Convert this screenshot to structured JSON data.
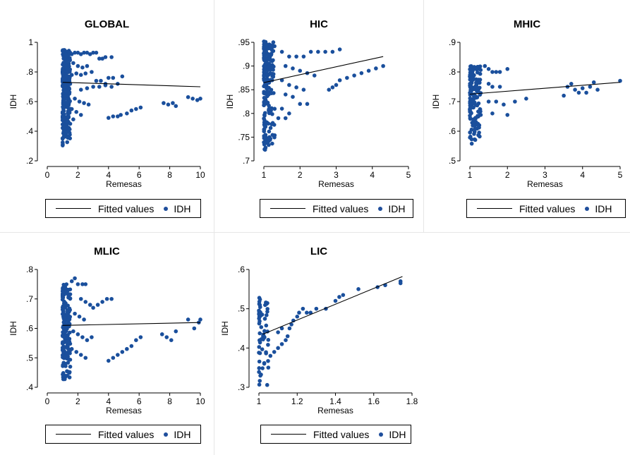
{
  "colors": {
    "points": "#1a4f9c",
    "fit": "#000000",
    "background": "#ffffff"
  },
  "legend": {
    "fit_label": "Fitted values",
    "points_label": "IDH"
  },
  "chart_data": [
    {
      "type": "scatter",
      "title": "GLOBAL",
      "xlabel": "Remesas",
      "ylabel": "IDH",
      "xlim": [
        0,
        10
      ],
      "ylim": [
        0.2,
        1.0
      ],
      "xticks": [
        0,
        2,
        4,
        6,
        8,
        10
      ],
      "xtick_labels": [
        "0",
        "2",
        "4",
        "6",
        "8",
        "10"
      ],
      "yticks": [
        0.2,
        0.4,
        0.6,
        0.8,
        1.0
      ],
      "ytick_labels": [
        ".2",
        ".4",
        ".6",
        ".8",
        "1"
      ],
      "fit": {
        "x": [
          1,
          10
        ],
        "y": [
          0.73,
          0.7
        ]
      },
      "cloud": {
        "xmin": 1.0,
        "xmax": 1.5,
        "ymin": 0.3,
        "ymax": 0.95,
        "count": 260,
        "seed": 11
      },
      "points": [
        [
          1.6,
          0.92
        ],
        [
          1.8,
          0.93
        ],
        [
          2.0,
          0.93
        ],
        [
          2.2,
          0.92
        ],
        [
          2.4,
          0.93
        ],
        [
          2.6,
          0.93
        ],
        [
          2.8,
          0.92
        ],
        [
          3.0,
          0.93
        ],
        [
          3.2,
          0.93
        ],
        [
          3.4,
          0.89
        ],
        [
          3.6,
          0.89
        ],
        [
          3.8,
          0.9
        ],
        [
          4.2,
          0.9
        ],
        [
          1.7,
          0.86
        ],
        [
          2.0,
          0.84
        ],
        [
          2.3,
          0.83
        ],
        [
          2.6,
          0.84
        ],
        [
          1.6,
          0.78
        ],
        [
          1.9,
          0.79
        ],
        [
          2.2,
          0.78
        ],
        [
          2.5,
          0.79
        ],
        [
          2.9,
          0.8
        ],
        [
          3.2,
          0.74
        ],
        [
          3.5,
          0.74
        ],
        [
          3.8,
          0.72
        ],
        [
          4.0,
          0.76
        ],
        [
          4.3,
          0.76
        ],
        [
          4.6,
          0.72
        ],
        [
          4.9,
          0.77
        ],
        [
          2.2,
          0.68
        ],
        [
          2.6,
          0.69
        ],
        [
          3.0,
          0.7
        ],
        [
          3.4,
          0.7
        ],
        [
          3.8,
          0.71
        ],
        [
          4.2,
          0.7
        ],
        [
          1.8,
          0.62
        ],
        [
          2.1,
          0.6
        ],
        [
          2.4,
          0.59
        ],
        [
          2.7,
          0.58
        ],
        [
          1.6,
          0.55
        ],
        [
          1.9,
          0.53
        ],
        [
          2.2,
          0.51
        ],
        [
          4.0,
          0.49
        ],
        [
          4.3,
          0.5
        ],
        [
          4.6,
          0.5
        ],
        [
          4.8,
          0.51
        ],
        [
          5.2,
          0.52
        ],
        [
          5.5,
          0.54
        ],
        [
          5.8,
          0.55
        ],
        [
          6.1,
          0.56
        ],
        [
          7.6,
          0.59
        ],
        [
          7.9,
          0.58
        ],
        [
          8.2,
          0.59
        ],
        [
          8.4,
          0.57
        ],
        [
          9.2,
          0.63
        ],
        [
          9.5,
          0.62
        ],
        [
          9.8,
          0.61
        ],
        [
          10.0,
          0.62
        ],
        [
          1.7,
          0.48
        ],
        [
          1.5,
          0.45
        ]
      ]
    },
    {
      "type": "scatter",
      "title": "HIC",
      "xlabel": "Remesas",
      "ylabel": "IDH",
      "xlim": [
        1,
        5
      ],
      "ylim": [
        0.7,
        0.95
      ],
      "xticks": [
        1,
        2,
        3,
        4,
        5
      ],
      "xtick_labels": [
        "1",
        "2",
        "3",
        "4",
        "5"
      ],
      "yticks": [
        0.7,
        0.75,
        0.8,
        0.85,
        0.9,
        0.95
      ],
      "ytick_labels": [
        ".7",
        ".75",
        ".8",
        ".85",
        ".9",
        ".95"
      ],
      "fit": {
        "x": [
          1,
          4.3
        ],
        "y": [
          0.865,
          0.92
        ]
      },
      "cloud": {
        "xmin": 1.0,
        "xmax": 1.3,
        "ymin": 0.715,
        "ymax": 0.952,
        "count": 200,
        "seed": 23
      },
      "points": [
        [
          1.5,
          0.93
        ],
        [
          1.7,
          0.92
        ],
        [
          1.9,
          0.92
        ],
        [
          2.1,
          0.92
        ],
        [
          2.3,
          0.93
        ],
        [
          2.5,
          0.93
        ],
        [
          2.7,
          0.93
        ],
        [
          2.9,
          0.93
        ],
        [
          3.1,
          0.935
        ],
        [
          1.6,
          0.9
        ],
        [
          1.8,
          0.895
        ],
        [
          2.0,
          0.89
        ],
        [
          2.2,
          0.885
        ],
        [
          2.4,
          0.88
        ],
        [
          1.5,
          0.87
        ],
        [
          1.7,
          0.86
        ],
        [
          1.9,
          0.855
        ],
        [
          2.1,
          0.85
        ],
        [
          1.6,
          0.84
        ],
        [
          1.8,
          0.835
        ],
        [
          2.0,
          0.82
        ],
        [
          2.2,
          0.82
        ],
        [
          1.5,
          0.81
        ],
        [
          1.7,
          0.8
        ],
        [
          2.8,
          0.85
        ],
        [
          2.9,
          0.855
        ],
        [
          3.0,
          0.86
        ],
        [
          3.1,
          0.87
        ],
        [
          3.3,
          0.875
        ],
        [
          3.5,
          0.88
        ],
        [
          3.7,
          0.885
        ],
        [
          3.9,
          0.89
        ],
        [
          4.1,
          0.895
        ],
        [
          4.3,
          0.9
        ],
        [
          1.4,
          0.79
        ],
        [
          1.6,
          0.79
        ]
      ]
    },
    {
      "type": "scatter",
      "title": "MHIC",
      "xlabel": "Remesas",
      "ylabel": "IDH",
      "xlim": [
        1,
        5
      ],
      "ylim": [
        0.5,
        0.9
      ],
      "xticks": [
        1,
        2,
        3,
        4,
        5
      ],
      "xtick_labels": [
        "1",
        "2",
        "3",
        "4",
        "5"
      ],
      "yticks": [
        0.5,
        0.6,
        0.7,
        0.8,
        0.9
      ],
      "ytick_labels": [
        ".5",
        ".6",
        ".7",
        ".8",
        ".9"
      ],
      "fit": {
        "x": [
          1,
          5
        ],
        "y": [
          0.725,
          0.765
        ]
      },
      "cloud": {
        "xmin": 1.0,
        "xmax": 1.3,
        "ymin": 0.555,
        "ymax": 0.82,
        "count": 160,
        "seed": 37
      },
      "points": [
        [
          1.4,
          0.82
        ],
        [
          1.5,
          0.81
        ],
        [
          1.6,
          0.8
        ],
        [
          1.7,
          0.8
        ],
        [
          1.8,
          0.8
        ],
        [
          2.0,
          0.81
        ],
        [
          1.5,
          0.76
        ],
        [
          1.6,
          0.75
        ],
        [
          1.8,
          0.75
        ],
        [
          1.5,
          0.7
        ],
        [
          1.7,
          0.7
        ],
        [
          1.9,
          0.69
        ],
        [
          1.6,
          0.66
        ],
        [
          2.0,
          0.655
        ],
        [
          2.2,
          0.7
        ],
        [
          2.5,
          0.71
        ],
        [
          3.5,
          0.72
        ],
        [
          3.6,
          0.75
        ],
        [
          3.7,
          0.76
        ],
        [
          3.8,
          0.74
        ],
        [
          3.9,
          0.73
        ],
        [
          4.0,
          0.745
        ],
        [
          4.1,
          0.73
        ],
        [
          4.2,
          0.75
        ],
        [
          4.3,
          0.765
        ],
        [
          4.4,
          0.74
        ],
        [
          5.0,
          0.77
        ]
      ]
    },
    {
      "type": "scatter",
      "title": "MLIC",
      "xlabel": "Remesas",
      "ylabel": "IDH",
      "xlim": [
        0,
        10
      ],
      "ylim": [
        0.4,
        0.8
      ],
      "xticks": [
        0,
        2,
        4,
        6,
        8,
        10
      ],
      "xtick_labels": [
        "0",
        "2",
        "4",
        "6",
        "8",
        "10"
      ],
      "yticks": [
        0.4,
        0.5,
        0.6,
        0.7,
        0.8
      ],
      "ytick_labels": [
        ".4",
        ".5",
        ".6",
        ".7",
        ".8"
      ],
      "fit": {
        "x": [
          1,
          10
        ],
        "y": [
          0.61,
          0.62
        ]
      },
      "cloud": {
        "xmin": 1.0,
        "xmax": 1.5,
        "ymin": 0.42,
        "ymax": 0.75,
        "count": 180,
        "seed": 51
      },
      "points": [
        [
          1.6,
          0.76
        ],
        [
          1.8,
          0.77
        ],
        [
          2.0,
          0.75
        ],
        [
          2.3,
          0.75
        ],
        [
          2.5,
          0.75
        ],
        [
          2.2,
          0.7
        ],
        [
          2.5,
          0.69
        ],
        [
          2.8,
          0.68
        ],
        [
          3.0,
          0.67
        ],
        [
          3.3,
          0.68
        ],
        [
          3.6,
          0.69
        ],
        [
          3.9,
          0.7
        ],
        [
          4.2,
          0.7
        ],
        [
          1.8,
          0.65
        ],
        [
          2.1,
          0.64
        ],
        [
          2.4,
          0.63
        ],
        [
          1.7,
          0.59
        ],
        [
          2.0,
          0.58
        ],
        [
          2.3,
          0.57
        ],
        [
          2.6,
          0.56
        ],
        [
          2.9,
          0.57
        ],
        [
          1.6,
          0.53
        ],
        [
          1.9,
          0.52
        ],
        [
          2.2,
          0.51
        ],
        [
          2.5,
          0.5
        ],
        [
          1.5,
          0.47
        ],
        [
          4.0,
          0.49
        ],
        [
          4.3,
          0.5
        ],
        [
          4.6,
          0.51
        ],
        [
          4.9,
          0.52
        ],
        [
          5.2,
          0.53
        ],
        [
          5.5,
          0.54
        ],
        [
          5.8,
          0.56
        ],
        [
          6.1,
          0.57
        ],
        [
          7.5,
          0.58
        ],
        [
          7.8,
          0.57
        ],
        [
          8.1,
          0.56
        ],
        [
          8.4,
          0.59
        ],
        [
          9.2,
          0.63
        ],
        [
          9.6,
          0.6
        ],
        [
          9.9,
          0.62
        ],
        [
          10.0,
          0.63
        ]
      ]
    },
    {
      "type": "scatter",
      "title": "LIC",
      "xlabel": "Remesas",
      "ylabel": "IDH",
      "xlim": [
        1,
        1.8
      ],
      "ylim": [
        0.3,
        0.6
      ],
      "xticks": [
        1,
        1.2,
        1.4,
        1.6,
        1.8
      ],
      "xtick_labels": [
        "1",
        "1.2",
        "1.4",
        "1.6",
        "1.8"
      ],
      "yticks": [
        0.3,
        0.4,
        0.5,
        0.6
      ],
      "ytick_labels": [
        ".3",
        ".4",
        ".5",
        ".6"
      ],
      "fit": {
        "x": [
          1.02,
          1.75
        ],
        "y": [
          0.435,
          0.582
        ]
      },
      "cloud": {
        "xmin": 1.0,
        "xmax": 1.05,
        "ymin": 0.3,
        "ymax": 0.535,
        "count": 60,
        "seed": 67
      },
      "points": [
        [
          1.06,
          0.38
        ],
        [
          1.08,
          0.39
        ],
        [
          1.1,
          0.4
        ],
        [
          1.12,
          0.41
        ],
        [
          1.14,
          0.42
        ],
        [
          1.15,
          0.43
        ],
        [
          1.16,
          0.45
        ],
        [
          1.17,
          0.46
        ],
        [
          1.18,
          0.47
        ],
        [
          1.2,
          0.48
        ],
        [
          1.21,
          0.49
        ],
        [
          1.23,
          0.5
        ],
        [
          1.25,
          0.49
        ],
        [
          1.27,
          0.49
        ],
        [
          1.3,
          0.5
        ],
        [
          1.35,
          0.5
        ],
        [
          1.4,
          0.52
        ],
        [
          1.42,
          0.53
        ],
        [
          1.44,
          0.535
        ],
        [
          1.52,
          0.55
        ],
        [
          1.62,
          0.555
        ],
        [
          1.66,
          0.56
        ],
        [
          1.74,
          0.57
        ],
        [
          1.74,
          0.565
        ],
        [
          1.1,
          0.44
        ],
        [
          1.12,
          0.45
        ]
      ]
    }
  ]
}
